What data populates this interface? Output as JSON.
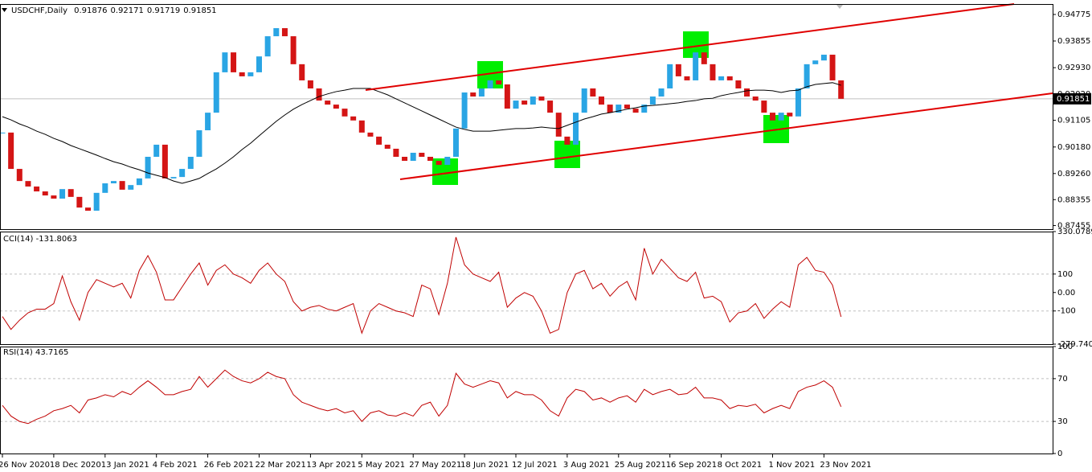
{
  "chart_data": [
    {
      "type": "candlestick",
      "symbol": "USDCHF,Daily",
      "ohlc": [
        0.91876,
        0.92171,
        0.91719,
        0.91851
      ],
      "categories": [
        "26 Nov 2020",
        null,
        null,
        null,
        null,
        null,
        "18 Dec 2020",
        null,
        null,
        null,
        null,
        null,
        "13 Jan 2021",
        null,
        null,
        null,
        null,
        null,
        "4 Feb 2021",
        null,
        null,
        null,
        null,
        null,
        "26 Feb 2021",
        null,
        null,
        null,
        null,
        null,
        "22 Mar 2021",
        null,
        null,
        null,
        null,
        null,
        "13 Apr 2021",
        null,
        null,
        null,
        null,
        null,
        "5 May 2021",
        null,
        null,
        null,
        null,
        null,
        "27 May 2021",
        null,
        null,
        null,
        null,
        null,
        "18 Jun 2021",
        null,
        null,
        null,
        null,
        null,
        "12 Jul 2021",
        null,
        null,
        null,
        null,
        null,
        "3 Aug 2021",
        null,
        null,
        null,
        null,
        null,
        "25 Aug 2021",
        null,
        null,
        null,
        null,
        null,
        "16 Sep 2021",
        null,
        null,
        null,
        null,
        null,
        "8 Oct 2021",
        null,
        null,
        null,
        null,
        null,
        "1 Nov 2021",
        null,
        null,
        null,
        null,
        null,
        "23 Nov 2021",
        null,
        null
      ],
      "values": [
        0.9068,
        0.8942,
        0.89,
        0.8881,
        0.8864,
        0.885,
        0.8839,
        0.8872,
        0.8845,
        0.8808,
        0.8797,
        0.8859,
        0.8892,
        0.89,
        0.887,
        0.8886,
        0.8909,
        0.8984,
        0.9026,
        0.8909,
        0.8914,
        0.8942,
        0.8984,
        0.9076,
        0.9137,
        0.9277,
        0.9346,
        0.9277,
        0.9263,
        0.9277,
        0.9332,
        0.9402,
        0.943,
        0.9402,
        0.9305,
        0.9249,
        0.9221,
        0.9179,
        0.9165,
        0.9151,
        0.9124,
        0.911,
        0.9068,
        0.9054,
        0.9026,
        0.9012,
        0.8984,
        0.897,
        0.8998,
        0.8984,
        0.897,
        0.8956,
        0.8984,
        0.9082,
        0.9207,
        0.9193,
        0.9221,
        0.9249,
        0.9235,
        0.9151,
        0.9179,
        0.9165,
        0.9193,
        0.9179,
        0.9137,
        0.9054,
        0.9026,
        0.9137,
        0.9221,
        0.9193,
        0.9165,
        0.9137,
        0.9165,
        0.9151,
        0.9137,
        0.9165,
        0.9193,
        0.9221,
        0.9305,
        0.9263,
        0.9249,
        0.9346,
        0.9305,
        0.9249,
        0.9263,
        0.9249,
        0.9221,
        0.9193,
        0.9179,
        0.9137,
        0.911,
        0.9137,
        0.9124,
        0.9221,
        0.9305,
        0.9318,
        0.9338,
        0.9249,
        0.91851
      ],
      "ma_values": [
        0.9123,
        0.9112,
        0.9098,
        0.9087,
        0.9073,
        0.9062,
        0.9048,
        0.9037,
        0.9023,
        0.9012,
        0.9001,
        0.899,
        0.8978,
        0.8967,
        0.8959,
        0.8948,
        0.8939,
        0.8928,
        0.892,
        0.8912,
        0.89,
        0.8892,
        0.89,
        0.8909,
        0.8926,
        0.8942,
        0.8962,
        0.8984,
        0.9009,
        0.9031,
        0.9057,
        0.9082,
        0.9107,
        0.9129,
        0.9149,
        0.9165,
        0.9179,
        0.9193,
        0.9202,
        0.921,
        0.9215,
        0.9221,
        0.9221,
        0.9221,
        0.921,
        0.9199,
        0.9185,
        0.9171,
        0.9157,
        0.9143,
        0.9129,
        0.9115,
        0.9101,
        0.9087,
        0.9079,
        0.9073,
        0.9073,
        0.9073,
        0.9076,
        0.9079,
        0.9082,
        0.9082,
        0.9084,
        0.9087,
        0.9084,
        0.9082,
        0.9093,
        0.9104,
        0.9115,
        0.9123,
        0.9132,
        0.9137,
        0.9143,
        0.9149,
        0.9154,
        0.916,
        0.9162,
        0.9165,
        0.9168,
        0.9171,
        0.9176,
        0.9179,
        0.9185,
        0.9187,
        0.9196,
        0.9202,
        0.9207,
        0.9213,
        0.9215,
        0.9215,
        0.9213,
        0.9207,
        0.9213,
        0.9215,
        0.9227,
        0.9235,
        0.9238,
        0.9241,
        0.9232
      ],
      "up_color": "#2aa5e4",
      "down_color": "#d41515",
      "ma_color": "#000000",
      "ylim": [
        0.87331,
        0.95137
      ],
      "yticks": [
        0.94775,
        0.93855,
        {
          "value": 0.9293,
          "label": "0.92930"
        },
        {
          "value": 0.9202,
          "label": "0.92020"
        },
        0.91105,
        {
          "value": 0.9018,
          "label": "0.90180"
        },
        {
          "value": 0.8926,
          "label": "0.89260"
        },
        0.88355,
        0.87455
      ]
    },
    {
      "type": "line",
      "title": "CCI(14) -131.8063",
      "color": "#c00000",
      "values": [
        -130,
        -200,
        -150,
        -110,
        -90,
        -90,
        -60,
        90,
        -50,
        -150,
        0,
        70,
        50,
        30,
        50,
        -30,
        120,
        200,
        110,
        -40,
        -40,
        30,
        100,
        160,
        40,
        120,
        150,
        100,
        80,
        50,
        120,
        160,
        100,
        60,
        -50,
        -100,
        -80,
        -70,
        -90,
        -100,
        -80,
        -60,
        -220,
        -100,
        -60,
        -80,
        -100,
        -110,
        -130,
        40,
        20,
        -120,
        50,
        300,
        150,
        100,
        80,
        60,
        110,
        -80,
        -30,
        0,
        -20,
        -100,
        -220,
        -200,
        0,
        100,
        120,
        20,
        50,
        -20,
        30,
        60,
        -40,
        240,
        100,
        180,
        130,
        80,
        60,
        110,
        -30,
        -20,
        -50,
        -160,
        -110,
        -100,
        -60,
        -140,
        -90,
        -50,
        -80,
        150,
        190,
        120,
        110,
        40,
        -131.8063
      ],
      "ylim": [
        -279.7405,
        330.0789
      ],
      "yticks": [
        330.0789,
        100,
        {
          "value": 0,
          "label": "0.00"
        },
        -100,
        -279.7405
      ],
      "levels": [
        100,
        -100
      ]
    },
    {
      "type": "line",
      "title": "RSI(14) 43.7165",
      "color": "#c00000",
      "values": [
        45,
        35,
        30,
        28,
        32,
        35,
        40,
        42,
        45,
        38,
        50,
        52,
        55,
        53,
        58,
        55,
        62,
        68,
        62,
        55,
        55,
        58,
        60,
        72,
        62,
        70,
        78,
        72,
        68,
        66,
        70,
        76,
        72,
        70,
        55,
        48,
        45,
        42,
        40,
        42,
        38,
        40,
        30,
        38,
        40,
        36,
        35,
        38,
        35,
        45,
        48,
        35,
        45,
        75,
        65,
        62,
        65,
        68,
        66,
        52,
        58,
        55,
        55,
        50,
        40,
        35,
        52,
        60,
        58,
        50,
        52,
        48,
        52,
        54,
        48,
        60,
        55,
        58,
        60,
        55,
        56,
        62,
        52,
        52,
        50,
        42,
        45,
        44,
        46,
        38,
        42,
        45,
        42,
        58,
        62,
        64,
        68,
        62,
        43.7165
      ],
      "ylim": [
        0,
        100
      ],
      "yticks": [
        100,
        70,
        30,
        0
      ],
      "levels": [
        70,
        30
      ]
    }
  ]
}
